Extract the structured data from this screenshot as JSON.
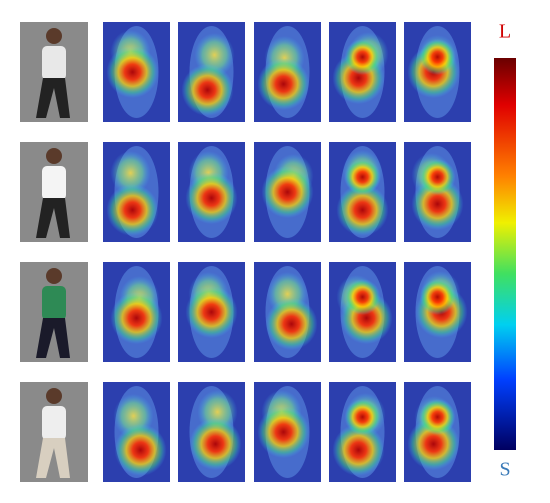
{
  "colorbar": {
    "top_label": "L",
    "bottom_label": "S"
  }
}
